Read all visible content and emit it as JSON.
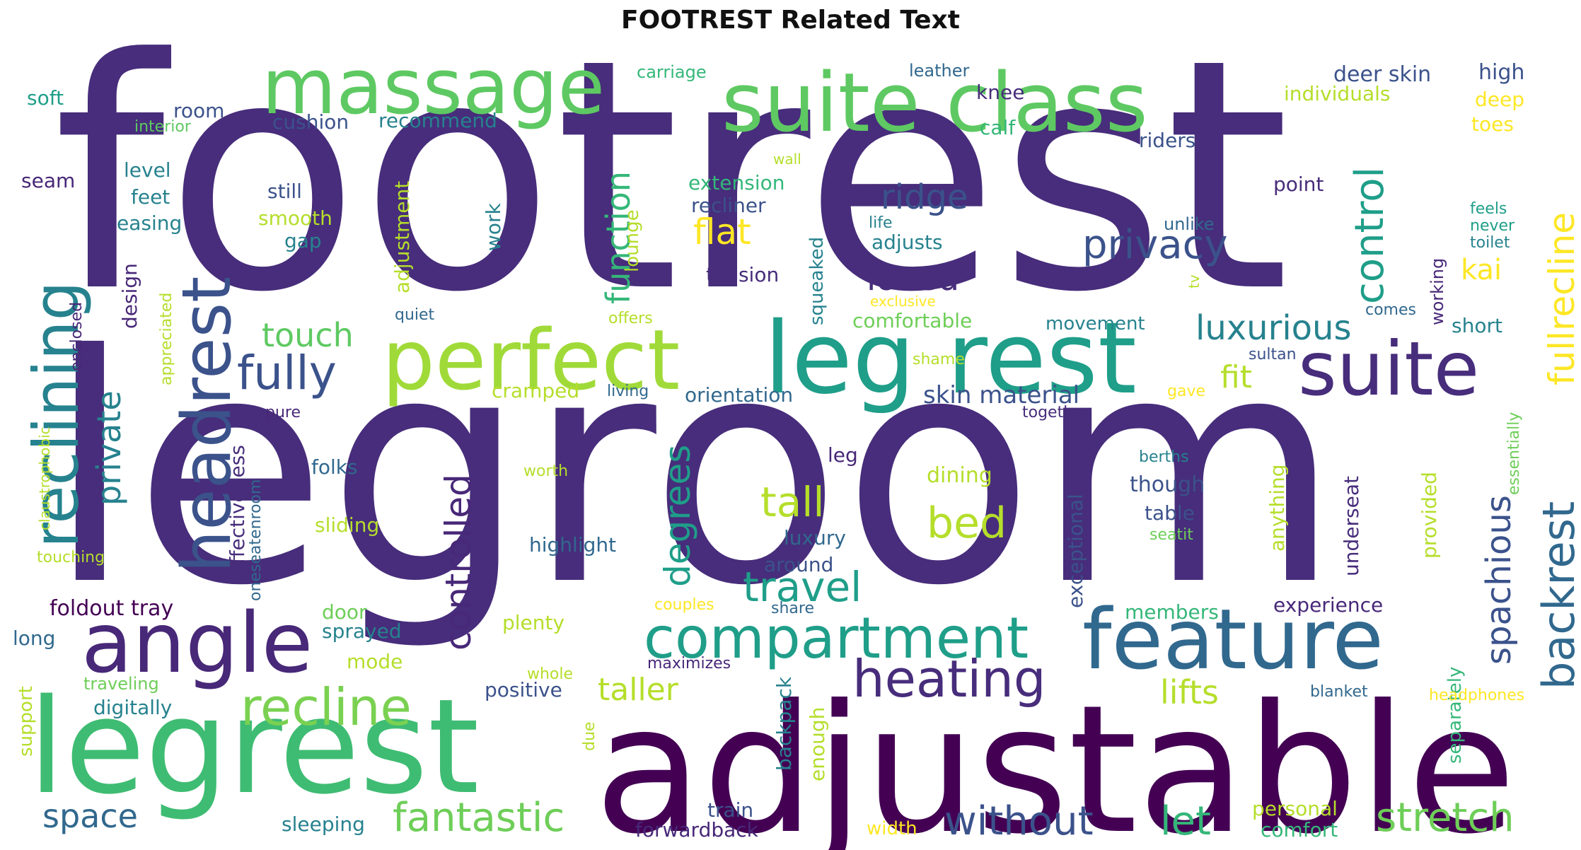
{
  "title": "FOOTREST Related Text",
  "palette": {
    "dark_purple": "#440154",
    "indigo": "#482878",
    "navy": "#3b528b",
    "blue": "#31688e",
    "teal": "#26828e",
    "sea": "#1f9e89",
    "green": "#35b779",
    "lime": "#6ece58",
    "yellowgreen": "#b5de2b",
    "yellow": "#fde725"
  },
  "words": [
    "footrest",
    "legroom",
    "adjustable",
    "legrest",
    "leg rest",
    "feature",
    "suite class",
    "massage",
    "perfect",
    "suite",
    "angle",
    "headrest",
    "reclining",
    "compartment",
    "heating",
    "recline",
    "fully",
    "backrest",
    "control",
    "privacy",
    "spachious",
    "degrees",
    "controlled",
    "fullrecline",
    "bed",
    "tall",
    "travel",
    "ridge",
    "loved",
    "luxurious",
    "flat",
    "function",
    "private",
    "touch",
    "fantastic",
    "stretch",
    "without",
    "let",
    "space",
    "lifts",
    "taller",
    "fit",
    "kai",
    "skin material",
    "deer skin",
    "high",
    "individuals",
    "deep",
    "toes",
    "knee",
    "calf",
    "riders",
    "point",
    "carriage",
    "leather",
    "soft",
    "interior",
    "room",
    "cushion",
    "recommend",
    "level",
    "feet",
    "easing",
    "seam",
    "still",
    "smooth",
    "gap",
    "adjustment",
    "work",
    "extension",
    "recliner",
    "squeaked",
    "lounge",
    "tension",
    "adjusts",
    "life",
    "feels",
    "never",
    "toilet",
    "unlike",
    "working",
    "tv",
    "wall",
    "exclusive",
    "comfortable",
    "movement",
    "comes",
    "short",
    "offers",
    "quiet",
    "shame",
    "sultan",
    "design",
    "appreciated",
    "enclosed",
    "claustrophobic",
    "cramped",
    "living",
    "orientation",
    "gave",
    "together",
    "pure",
    "effectiveness",
    "oneseatenroom",
    "folks",
    "dining",
    "leg",
    "though",
    "table",
    "berths",
    "essentially",
    "exceptional",
    "underseat",
    "provided",
    "anything",
    "worth",
    "seatit",
    "sliding",
    "luxury",
    "highlight",
    "around",
    "touching",
    "foldout tray",
    "door",
    "sprayed",
    "plenty",
    "experience",
    "members",
    "separately",
    "long",
    "mode",
    "couples",
    "share",
    "maximizes",
    "whole",
    "support",
    "traveling",
    "digitally",
    "positive",
    "blanket",
    "headphones",
    "backpack",
    "enough",
    "due",
    "personal",
    "comfort",
    "train",
    "forwardback",
    "sleeping",
    "width"
  ]
}
